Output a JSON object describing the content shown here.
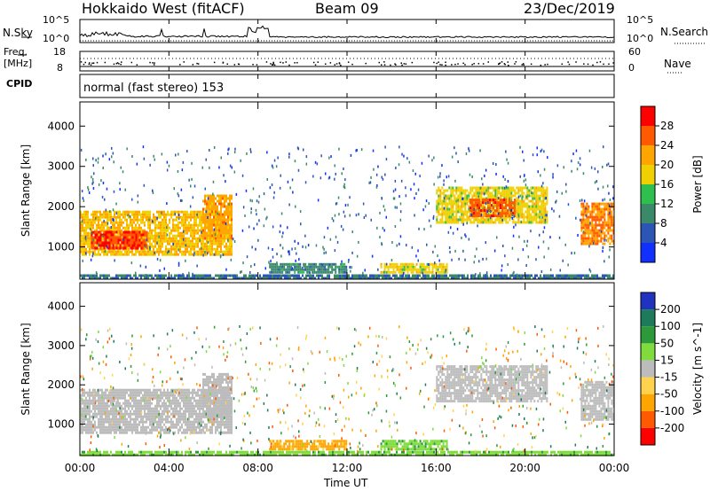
{
  "header": {
    "title": "Hokkaido West (fitACF)",
    "beam": "Beam 09",
    "date": "23/Dec/2019"
  },
  "noise_panel": {
    "left_label": "N.Sky",
    "right_label": "N.Search",
    "ticks": [
      "10^5",
      "10^0"
    ]
  },
  "freq_panel": {
    "left_label_1": "Freq.",
    "left_label_2": "[MHz]",
    "left_ticks": [
      "18",
      "8"
    ],
    "right_label": "Nave",
    "right_ticks": [
      "60",
      "0"
    ],
    "cpid_label": "CPID",
    "cpid_text": "normal (fast stereo) 153"
  },
  "x_axis": {
    "ticks": [
      "00:00",
      "04:00",
      "08:00",
      "12:00",
      "16:00",
      "20:00",
      "00:00"
    ],
    "label": "Time UT"
  },
  "colors": {
    "power_scale": [
      "#1030ff",
      "#2d55b5",
      "#3a8a6a",
      "#2fbf4f",
      "#f0d000",
      "#ffa500",
      "#ff5a00",
      "#ff0000"
    ],
    "velocity_scale": [
      "#ff0000",
      "#ff5a00",
      "#ffa500",
      "#ffd34e",
      "#bcbcbc",
      "#7fdc3c",
      "#2c9a3a",
      "#1d7a5a",
      "#2033c0"
    ]
  },
  "chart_data": [
    {
      "type": "heatmap",
      "name": "power",
      "ylabel": "Slant Range [km]",
      "ylim": [
        200,
        4600
      ],
      "yticks": [
        1000,
        2000,
        3000,
        4000
      ],
      "xlim": [
        0,
        24
      ],
      "colorbar_label": "Power [dB]",
      "colorbar_ticks": [
        4,
        8,
        12,
        16,
        20,
        24,
        28
      ],
      "colorbar_range": [
        0,
        32
      ],
      "regions": [
        {
          "t0": 0.0,
          "t1": 6.8,
          "r0": 800,
          "r1": 1900,
          "value": 20
        },
        {
          "t0": 0.5,
          "t1": 3.0,
          "r0": 1000,
          "r1": 1400,
          "value": 28
        },
        {
          "t0": 5.5,
          "t1": 6.8,
          "r0": 1200,
          "r1": 2300,
          "value": 22
        },
        {
          "t0": 8.5,
          "t1": 12.0,
          "r0": 350,
          "r1": 600,
          "value": 10
        },
        {
          "t0": 13.5,
          "t1": 16.5,
          "r0": 350,
          "r1": 600,
          "value": 18
        },
        {
          "t0": 16.0,
          "t1": 21.0,
          "r0": 1600,
          "r1": 2500,
          "value": 18
        },
        {
          "t0": 17.5,
          "t1": 19.5,
          "r0": 1800,
          "r1": 2200,
          "value": 26
        },
        {
          "t0": 22.5,
          "t1": 24.0,
          "r0": 1100,
          "r1": 2100,
          "value": 24
        },
        {
          "t0": 0.0,
          "t1": 24.0,
          "r0": 200,
          "r1": 320,
          "value": 8
        }
      ]
    },
    {
      "type": "heatmap",
      "name": "velocity",
      "ylabel": "Slant Range [km]",
      "ylim": [
        200,
        4600
      ],
      "yticks": [
        1000,
        2000,
        3000,
        4000
      ],
      "xlim": [
        0,
        24
      ],
      "colorbar_label": "Velocity [m s^-1]",
      "colorbar_ticks": [
        200,
        100,
        50,
        15,
        -15,
        -50,
        -100,
        -200
      ],
      "regions": [
        {
          "t0": 0.0,
          "t1": 6.8,
          "r0": 800,
          "r1": 1900,
          "value": 0
        },
        {
          "t0": 5.5,
          "t1": 6.8,
          "r0": 1200,
          "r1": 2300,
          "value": 0
        },
        {
          "t0": 8.5,
          "t1": 12.0,
          "r0": 350,
          "r1": 600,
          "value": -60
        },
        {
          "t0": 13.5,
          "t1": 16.5,
          "r0": 350,
          "r1": 600,
          "value": 40
        },
        {
          "t0": 16.0,
          "t1": 21.0,
          "r0": 1600,
          "r1": 2500,
          "value": 0
        },
        {
          "t0": 22.5,
          "t1": 24.0,
          "r0": 1100,
          "r1": 2100,
          "value": 0
        },
        {
          "t0": 0.0,
          "t1": 24.0,
          "r0": 200,
          "r1": 320,
          "value": 40
        }
      ]
    }
  ]
}
